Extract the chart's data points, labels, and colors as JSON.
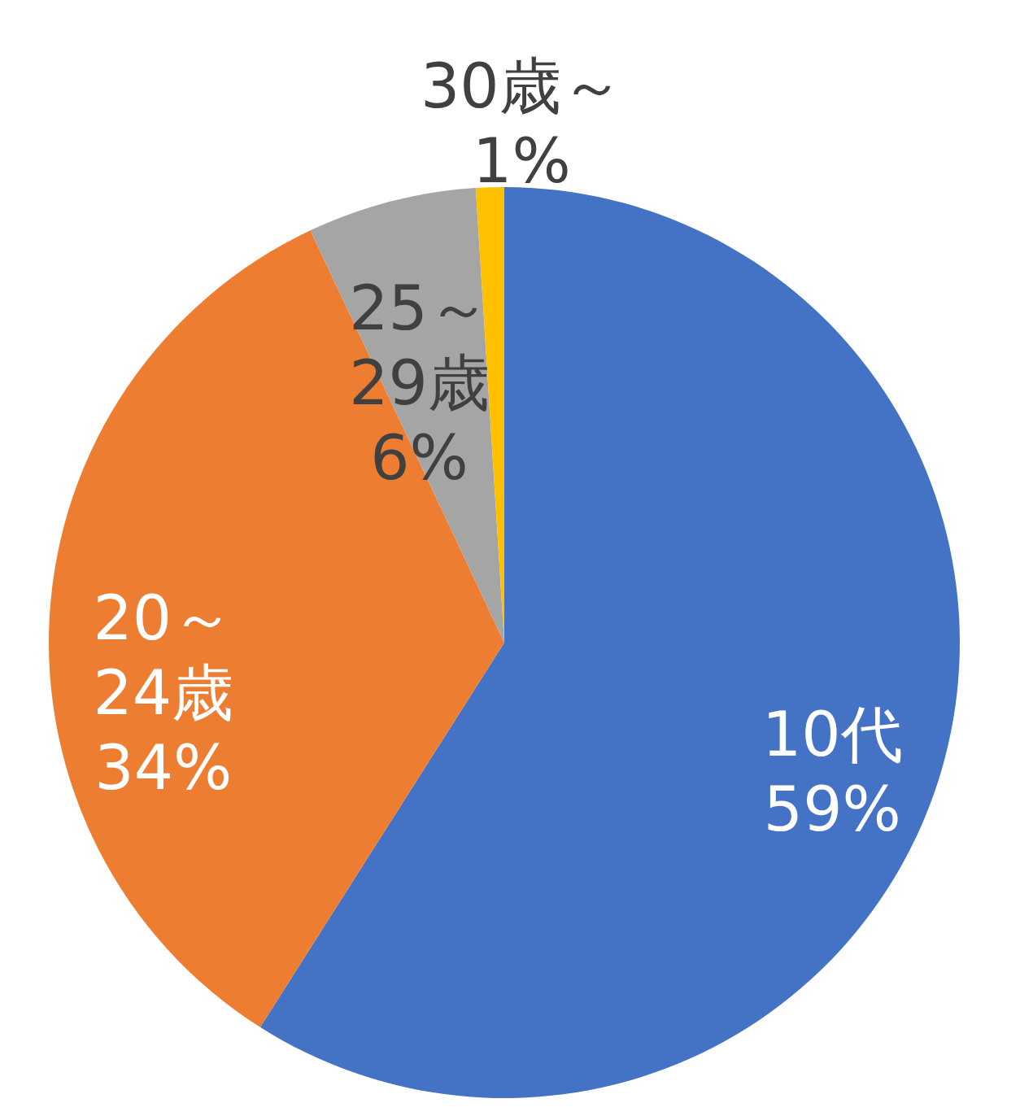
{
  "chart_data": {
    "type": "pie",
    "categories": [
      "10代",
      "20～24歳",
      "25～29歳",
      "30歳～"
    ],
    "values": [
      59,
      34,
      6,
      1
    ],
    "value_labels": [
      "59%",
      "34%",
      "6%",
      "1%"
    ],
    "colors": [
      "#4472c4",
      "#ed7d31",
      "#a5a5a5",
      "#ffc000"
    ]
  }
}
